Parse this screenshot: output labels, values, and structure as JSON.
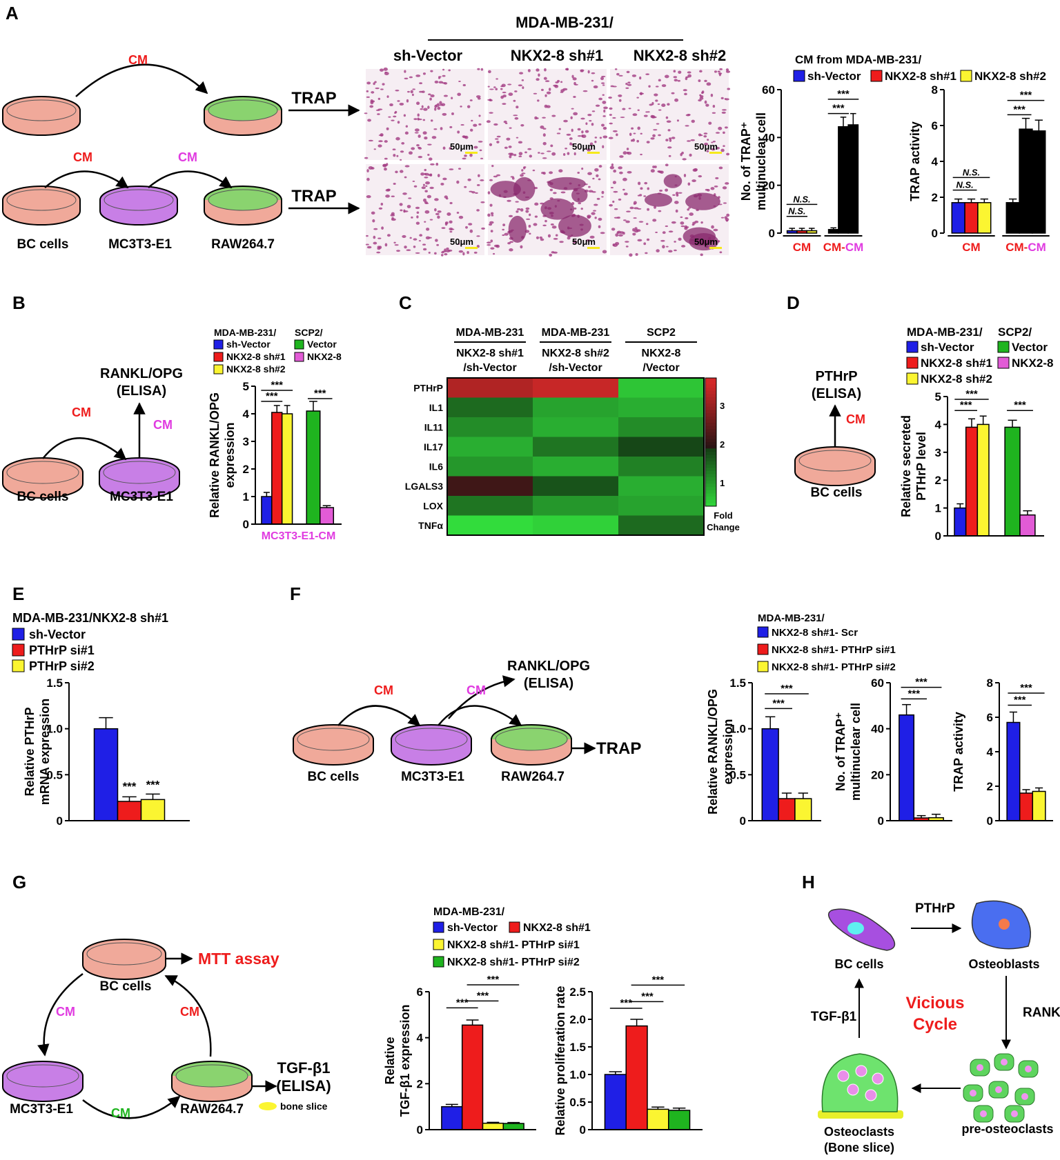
{
  "colors": {
    "blue": "#1f1fe6",
    "red": "#ee1c1c",
    "yellow": "#fbf531",
    "green": "#1fb41f",
    "magenta": "#e25bd6",
    "cm_red": "#ee1c1c",
    "cm_magenta": "#e03be0",
    "cm_green": "#1fb41f",
    "dish_pink": "#f0a99a",
    "dish_purple": "#c87fe6",
    "dish_green": "#8ad36f",
    "stain": "#a23b82"
  },
  "panelA": {
    "letter": "A",
    "header": "MDA-MB-231/",
    "col_labels": [
      "sh-Vector",
      "NKX2-8 sh#1",
      "NKX2-8 sh#2"
    ],
    "cm1": "CM",
    "cm2": "CM",
    "cm3": "CM",
    "trap1": "TRAP",
    "trap2": "TRAP",
    "scale": "50μm",
    "cell_labels": [
      "BC cells",
      "MC3T3-E1",
      "RAW264.7"
    ],
    "legend_title": "CM from MDA-MB-231/",
    "legend": [
      "sh-Vector",
      "NKX2-8 sh#1",
      "NKX2-8 sh#2"
    ],
    "ns": "N.S.",
    "sig": "***"
  },
  "panelB": {
    "letter": "B",
    "rankl": "RANKL/OPG",
    "elisa": "(ELISA)",
    "cm1": "CM",
    "cm2": "CM",
    "cell_labels": [
      "BC cells",
      "MC3T3-E1"
    ],
    "legend_t1": "MDA-MB-231/",
    "legend_t2": "SCP2/",
    "legend": [
      "sh-Vector",
      "NKX2-8 sh#1",
      "NKX2-8 sh#2",
      "Vector",
      "NKX2-8"
    ]
  },
  "panelC": {
    "letter": "C",
    "col_heads": [
      [
        "MDA-MB-231",
        "NKX2-8 sh#1",
        "/sh-Vector"
      ],
      [
        "MDA-MB-231",
        "NKX2-8 sh#2",
        "/sh-Vector"
      ],
      [
        "SCP2",
        "NKX2-8",
        "/Vector"
      ]
    ],
    "rows": [
      "PTHrP",
      "IL1",
      "IL11",
      "IL17",
      "IL6",
      "LGALS3",
      "LOX",
      "TNFα"
    ],
    "values": [
      [
        3.2,
        3.4,
        0.8
      ],
      [
        1.6,
        1.1,
        1.0
      ],
      [
        1.3,
        1.0,
        1.3
      ],
      [
        1.0,
        1.5,
        1.9
      ],
      [
        1.2,
        1.0,
        1.4
      ],
      [
        2.2,
        1.8,
        1.0
      ],
      [
        1.5,
        1.2,
        1.1
      ],
      [
        0.6,
        0.7,
        1.6
      ]
    ],
    "colorbar_ticks": [
      "3",
      "2",
      "1"
    ],
    "colorbar_label1": "Fold",
    "colorbar_label2": "Change"
  },
  "panelD": {
    "letter": "D",
    "pthrp": "PTHrP",
    "elisa": "(ELISA)",
    "cm": "CM",
    "cell": "BC cells",
    "legend_t1": "MDA-MB-231/",
    "legend_t2": "SCP2/",
    "legend": [
      "sh-Vector",
      "NKX2-8 sh#1",
      "NKX2-8 sh#2",
      "Vector",
      "NKX2-8"
    ]
  },
  "panelE": {
    "letter": "E",
    "legend_title": "MDA-MB-231/NKX2-8 sh#1",
    "legend": [
      "sh-Vector",
      "PTHrP si#1",
      "PTHrP si#2"
    ]
  },
  "panelF": {
    "letter": "F",
    "cm1": "CM",
    "cm2": "CM",
    "rankl": "RANKL/OPG",
    "elisa": "(ELISA)",
    "trap": "TRAP",
    "cell_labels": [
      "BC cells",
      "MC3T3-E1",
      "RAW264.7"
    ],
    "legend_title": "MDA-MB-231/",
    "legend": [
      "NKX2-8 sh#1- Scr",
      "NKX2-8 sh#1- PTHrP si#1",
      "NKX2-8 sh#1- PTHrP si#2"
    ]
  },
  "panelG": {
    "letter": "G",
    "mtt": "MTT assay",
    "tgf": "TGF-β1",
    "elisa": "(ELISA)",
    "bone": "bone slice",
    "cm_left": "CM",
    "cm_right": "CM",
    "cm_bottom": "CM",
    "cell_labels": [
      "BC cells",
      "MC3T3-E1",
      "RAW264.7"
    ],
    "legend_title": "MDA-MB-231/",
    "legend": [
      "sh-Vector",
      "NKX2-8 sh#1",
      "NKX2-8 sh#1- PTHrP si#1",
      "NKX2-8 sh#1- PTHrP si#2"
    ]
  },
  "panelH": {
    "letter": "H",
    "pthrp": "PTHrP",
    "rankl": "RANKL",
    "tgf": "TGF-β1",
    "vicious1": "Vicious",
    "vicious2": "Cycle",
    "bc": "BC cells",
    "osteoblasts": "Osteoblasts",
    "pre": "pre-osteoclasts",
    "oc1": "Osteoclasts",
    "oc2": "(Bone slice)"
  },
  "chart_data": [
    {
      "id": "A-left",
      "type": "bar",
      "ylabel": [
        "No. of TRAP⁺",
        "multinuclear cell"
      ],
      "ylim": [
        0,
        60
      ],
      "yticks": [
        "0",
        "20",
        "40",
        "60"
      ],
      "groups": [
        {
          "label": [
            "CM"
          ],
          "values": [
            1,
            1,
            1
          ],
          "err": [
            1,
            1,
            1
          ]
        },
        {
          "label": [
            "CM-",
            "CM"
          ],
          "values": [
            1.5,
            44.5,
            45.3
          ],
          "err": [
            0.7,
            4,
            4.7
          ]
        }
      ],
      "colors": [
        "blue",
        "red",
        "yellow"
      ],
      "annots": [
        {
          "text": "N.S.",
          "g": 0,
          "from": 0,
          "to": 2,
          "y": 12
        },
        {
          "text": "N.S.",
          "g": 0,
          "from": 0,
          "to": 1,
          "y": 7
        },
        {
          "text": "***",
          "g": 1,
          "from": 0,
          "to": 2,
          "y": 56
        },
        {
          "text": "***",
          "g": 1,
          "from": 0,
          "to": 1,
          "y": 50
        }
      ]
    },
    {
      "id": "A-right",
      "type": "bar",
      "ylabel": [
        "TRAP activity"
      ],
      "ylim": [
        0,
        8
      ],
      "yticks": [
        "0",
        "2",
        "4",
        "6",
        "8"
      ],
      "groups": [
        {
          "label": [
            "CM"
          ],
          "values": [
            1.7,
            1.7,
            1.7
          ],
          "err": [
            0.2,
            0.2,
            0.2
          ]
        },
        {
          "label": [
            "CM-",
            "CM"
          ],
          "values": [
            1.7,
            5.8,
            5.7
          ],
          "err": [
            0.2,
            0.6,
            0.6
          ]
        }
      ],
      "colors": [
        "blue",
        "red",
        "yellow"
      ],
      "annots": [
        {
          "text": "N.S.",
          "g": 0,
          "from": 0,
          "to": 2,
          "y": 3.1
        },
        {
          "text": "N.S.",
          "g": 0,
          "from": 0,
          "to": 1,
          "y": 2.4
        },
        {
          "text": "***",
          "g": 1,
          "from": 0,
          "to": 2,
          "y": 7.4
        },
        {
          "text": "***",
          "g": 1,
          "from": 0,
          "to": 1,
          "y": 6.6
        }
      ]
    },
    {
      "id": "B",
      "type": "bar",
      "ylabel": [
        "Relative RANKL/OPG",
        "expression"
      ],
      "ylim": [
        0,
        5
      ],
      "yticks": [
        "0",
        "1",
        "2",
        "3",
        "4",
        "5"
      ],
      "xlabel": "MC3T3-E1-CM",
      "groups": [
        {
          "label": [],
          "values": [
            1,
            4.05,
            4.0
          ],
          "err": [
            0.15,
            0.25,
            0.3
          ]
        },
        {
          "label": [],
          "values": [
            4.1,
            0.6
          ],
          "err": [
            0.35,
            0.07
          ]
        }
      ],
      "colors": [
        "blue",
        "red",
        "yellow",
        "green",
        "magenta"
      ],
      "annots": [
        {
          "text": "***",
          "g": 0,
          "from": 0,
          "to": 2,
          "y": 4.85
        },
        {
          "text": "***",
          "g": 0,
          "from": 0,
          "to": 1,
          "y": 4.45
        },
        {
          "text": "***",
          "g": 1,
          "from": 0,
          "to": 1,
          "y": 4.55
        }
      ]
    },
    {
      "id": "D",
      "type": "bar",
      "ylabel": [
        "Relative secreted",
        "PTHrP level"
      ],
      "ylim": [
        0,
        5
      ],
      "yticks": [
        "0",
        "1",
        "2",
        "3",
        "4",
        "5"
      ],
      "groups": [
        {
          "label": [],
          "values": [
            1,
            3.9,
            4.0
          ],
          "err": [
            0.15,
            0.3,
            0.3
          ]
        },
        {
          "label": [],
          "values": [
            3.9,
            0.75
          ],
          "err": [
            0.25,
            0.15
          ]
        }
      ],
      "colors": [
        "blue",
        "red",
        "yellow",
        "green",
        "magenta"
      ],
      "annots": [
        {
          "text": "***",
          "g": 0,
          "from": 0,
          "to": 2,
          "y": 4.9
        },
        {
          "text": "***",
          "g": 0,
          "from": 0,
          "to": 1,
          "y": 4.5
        },
        {
          "text": "***",
          "g": 1,
          "from": 0,
          "to": 1,
          "y": 4.5
        }
      ]
    },
    {
      "id": "E",
      "type": "bar",
      "ylabel": [
        "Relative PTHrP",
        "mRNA expression"
      ],
      "ylim": [
        0,
        1.5
      ],
      "yticks": [
        "0",
        "0.5",
        "1.0",
        "1.5"
      ],
      "groups": [
        {
          "label": [],
          "values": [
            1.0,
            0.21,
            0.23
          ],
          "err": [
            0.12,
            0.05,
            0.06
          ]
        }
      ],
      "colors": [
        "blue",
        "red",
        "yellow"
      ],
      "stars": [
        {
          "text": "***",
          "i": 1,
          "y": 0.33
        },
        {
          "text": "***",
          "i": 2,
          "y": 0.35
        }
      ]
    },
    {
      "id": "F1",
      "type": "bar",
      "ylabel": [
        "Relative RANKL/OPG",
        "expression"
      ],
      "ylim": [
        0,
        1.5
      ],
      "yticks": [
        "0",
        "0.5",
        "1.0",
        "1.5"
      ],
      "groups": [
        {
          "label": [],
          "values": [
            1.0,
            0.24,
            0.24
          ],
          "err": [
            0.13,
            0.06,
            0.06
          ]
        }
      ],
      "colors": [
        "blue",
        "red",
        "yellow"
      ],
      "annots": [
        {
          "text": "***",
          "g": 0,
          "from": 0,
          "to": 2,
          "y": 1.38
        },
        {
          "text": "***",
          "g": 0,
          "from": 0,
          "to": 1,
          "y": 1.22
        }
      ]
    },
    {
      "id": "F2",
      "type": "bar",
      "ylabel": [
        "No. of TRAP⁺",
        "multinuclear cell"
      ],
      "ylim": [
        0,
        60
      ],
      "yticks": [
        "0",
        "20",
        "40",
        "60"
      ],
      "groups": [
        {
          "label": [],
          "values": [
            46,
            1.2,
            1.3
          ],
          "err": [
            4.5,
            1,
            1.5
          ]
        }
      ],
      "colors": [
        "blue",
        "red",
        "yellow"
      ],
      "annots": [
        {
          "text": "***",
          "g": 0,
          "from": 0,
          "to": 2,
          "y": 58
        },
        {
          "text": "***",
          "g": 0,
          "from": 0,
          "to": 1,
          "y": 53
        }
      ]
    },
    {
      "id": "F3",
      "type": "bar",
      "ylabel": [
        "TRAP activity"
      ],
      "ylim": [
        0,
        8
      ],
      "yticks": [
        "0",
        "2",
        "4",
        "6",
        "8"
      ],
      "groups": [
        {
          "label": [],
          "values": [
            5.7,
            1.6,
            1.7
          ],
          "err": [
            0.6,
            0.2,
            0.2
          ]
        }
      ],
      "colors": [
        "blue",
        "red",
        "yellow"
      ],
      "annots": [
        {
          "text": "***",
          "g": 0,
          "from": 0,
          "to": 2,
          "y": 7.4
        },
        {
          "text": "***",
          "g": 0,
          "from": 0,
          "to": 1,
          "y": 6.7
        }
      ]
    },
    {
      "id": "G1",
      "type": "bar",
      "ylabel": [
        "Relative",
        "TGF-β1 expression"
      ],
      "ylim": [
        0,
        6
      ],
      "yticks": [
        "0",
        "2",
        "4",
        "6"
      ],
      "groups": [
        {
          "label": [],
          "values": [
            1.0,
            4.55,
            0.28,
            0.27
          ],
          "err": [
            0.1,
            0.22,
            0.04,
            0.04
          ]
        }
      ],
      "colors": [
        "blue",
        "red",
        "yellow",
        "green"
      ],
      "annots": [
        {
          "text": "***",
          "g": 0,
          "from": 1,
          "to": 3,
          "y": 6.3
        },
        {
          "text": "***",
          "g": 0,
          "from": 1,
          "to": 2,
          "y": 5.6
        },
        {
          "text": "***",
          "g": 0,
          "from": 0,
          "to": 1,
          "y": 5.3
        }
      ]
    },
    {
      "id": "G2",
      "type": "bar",
      "ylabel": [
        "Relative proliferation rate"
      ],
      "ylim": [
        0,
        2.5
      ],
      "yticks": [
        "0",
        "0.5",
        "1.0",
        "1.5",
        "2.0",
        "2.5"
      ],
      "groups": [
        {
          "label": [],
          "values": [
            1.0,
            1.88,
            0.37,
            0.35
          ],
          "err": [
            0.05,
            0.12,
            0.04,
            0.04
          ]
        }
      ],
      "colors": [
        "blue",
        "red",
        "yellow",
        "green"
      ],
      "annots": [
        {
          "text": "***",
          "g": 0,
          "from": 1,
          "to": 3,
          "y": 2.62
        },
        {
          "text": "***",
          "g": 0,
          "from": 1,
          "to": 2,
          "y": 2.32
        },
        {
          "text": "***",
          "g": 0,
          "from": 0,
          "to": 1,
          "y": 2.2
        }
      ]
    }
  ]
}
